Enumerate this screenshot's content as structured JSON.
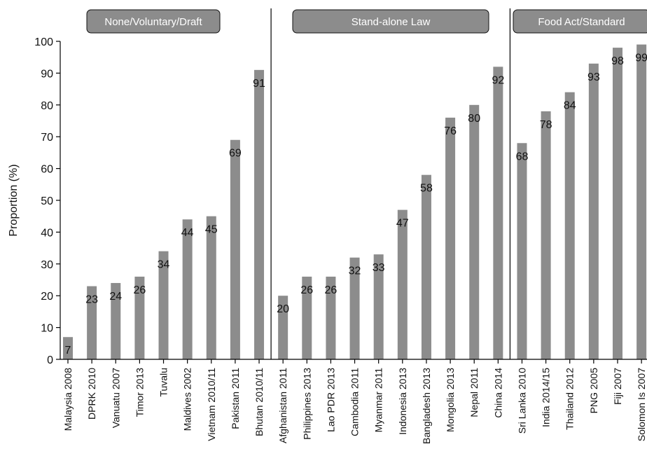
{
  "chart_data": {
    "type": "bar",
    "ylabel": "Proportion (%)",
    "xlabel": "",
    "ylim": [
      0,
      100
    ],
    "yticks": [
      0,
      10,
      20,
      30,
      40,
      50,
      60,
      70,
      80,
      90,
      100
    ],
    "bar_color": "#8c8c8c",
    "group_box_color": "#8c8c8c",
    "grid": false,
    "groups": [
      {
        "name": "None/Voluntary/Draft",
        "categories": [
          "Malaysia 2008",
          "DPRK 2010",
          "Vanuatu 2007",
          "Timor 2013",
          "Tuvalu",
          "Maldives 2002",
          "Vietnam 2010/11",
          "Pakistan 2011",
          "Bhutan 2010/11"
        ],
        "values": [
          7,
          23,
          24,
          26,
          34,
          44,
          45,
          69,
          91
        ]
      },
      {
        "name": "Stand-alone Law",
        "categories": [
          "Afghanistan 2011",
          "Philippines 2013",
          "Lao PDR 2013",
          "Cambodia 2011",
          "Myanmar 2011",
          "Indonesia 2013",
          "Bangladesh 2013",
          "Mongolia 2013",
          "Nepal 2011",
          "China 2014"
        ],
        "values": [
          20,
          26,
          26,
          32,
          33,
          47,
          58,
          76,
          80,
          92
        ]
      },
      {
        "name": "Food Act/Standard",
        "categories": [
          "Sri Lanka 2010",
          "India 2014/15",
          "Thailand 2012",
          "PNG 2005",
          "Fiji 2007",
          "Solomon Is 2007"
        ],
        "values": [
          68,
          78,
          84,
          93,
          98,
          99
        ]
      }
    ]
  }
}
